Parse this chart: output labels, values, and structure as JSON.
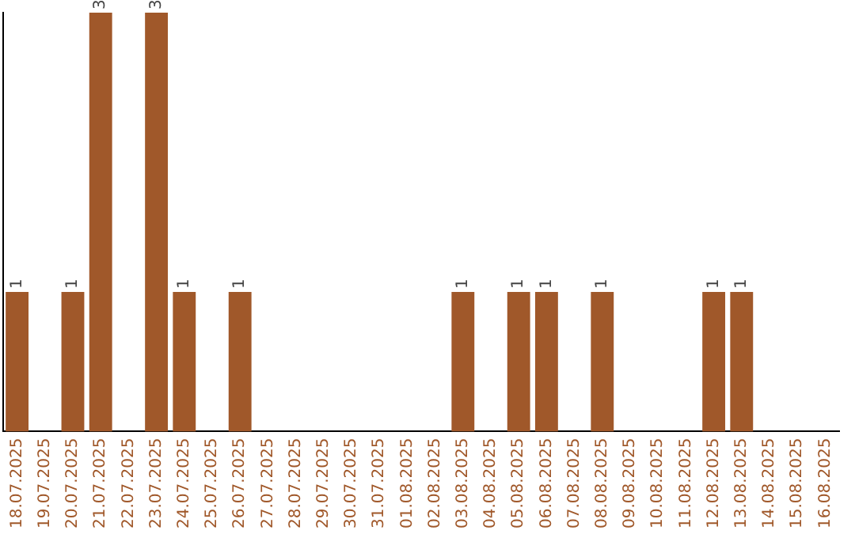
{
  "chart_data": {
    "type": "bar",
    "categories": [
      "18.07.2025",
      "19.07.2025",
      "20.07.2025",
      "21.07.2025",
      "22.07.2025",
      "23.07.2025",
      "24.07.2025",
      "25.07.2025",
      "26.07.2025",
      "27.07.2025",
      "28.07.2025",
      "29.07.2025",
      "30.07.2025",
      "31.07.2025",
      "01.08.2025",
      "02.08.2025",
      "03.08.2025",
      "04.08.2025",
      "05.08.2025",
      "06.08.2025",
      "07.08.2025",
      "08.08.2025",
      "09.08.2025",
      "10.08.2025",
      "11.08.2025",
      "12.08.2025",
      "13.08.2025",
      "14.08.2025",
      "15.08.2025",
      "16.08.2025"
    ],
    "values": [
      1,
      0,
      1,
      3,
      0,
      3,
      1,
      0,
      1,
      0,
      0,
      0,
      0,
      0,
      0,
      0,
      1,
      0,
      1,
      1,
      0,
      1,
      0,
      0,
      0,
      1,
      1,
      0,
      0,
      0
    ],
    "value_labels": [
      "1",
      null,
      "1",
      "3",
      null,
      "3",
      "1",
      null,
      "1",
      null,
      null,
      null,
      null,
      null,
      null,
      null,
      "1",
      null,
      "1",
      "1",
      null,
      "1",
      null,
      null,
      null,
      "1",
      "1",
      null,
      null,
      null
    ],
    "color": "#a0582a",
    "ylim": [
      0,
      3
    ],
    "tick_labels": "x",
    "grid": false,
    "legend": false
  }
}
